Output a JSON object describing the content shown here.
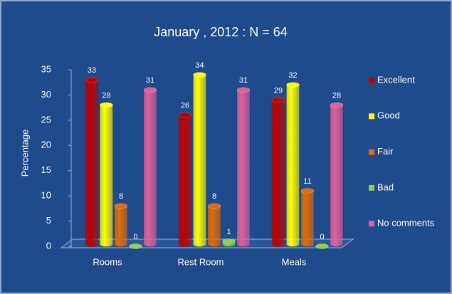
{
  "chart_data": {
    "type": "bar",
    "title": "January , 2012  :  N = 64",
    "y_label": "Percentage",
    "categories": [
      "Rooms",
      "Rest Room",
      "Meals"
    ],
    "series": [
      {
        "name": "Excellent",
        "color": "#c00000",
        "values": [
          33,
          26,
          29
        ]
      },
      {
        "name": "Good",
        "color": "#ffff00",
        "values": [
          28,
          34,
          32
        ]
      },
      {
        "name": "Fair",
        "color": "#e36c0a",
        "values": [
          8,
          8,
          11
        ]
      },
      {
        "name": "Bad",
        "color": "#92d050",
        "values": [
          0,
          1,
          0
        ]
      },
      {
        "name": "No comments",
        "color": "#e0609c",
        "values": [
          31,
          31,
          28
        ]
      }
    ],
    "ylim": [
      0,
      35
    ],
    "yticks": [
      0,
      5,
      10,
      15,
      20,
      25,
      30,
      35
    ],
    "legend": "right"
  }
}
